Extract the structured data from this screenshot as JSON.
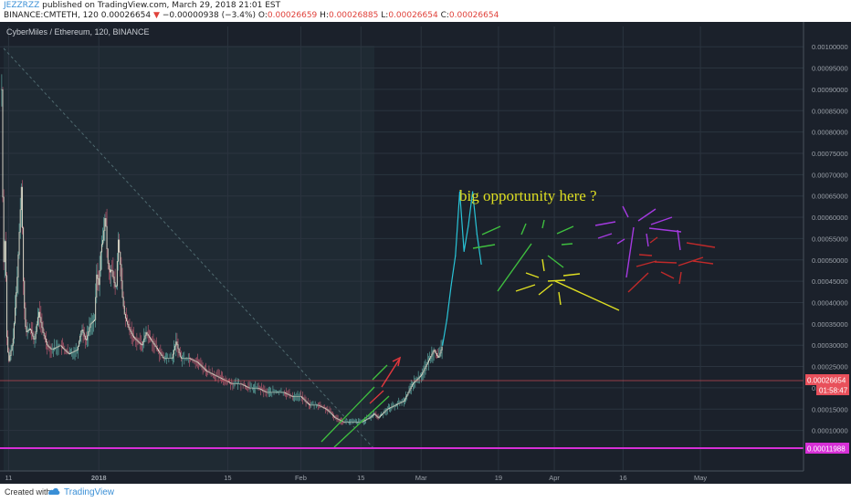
{
  "header": {
    "username": "JEZZRZZ",
    "published": " published on TradingView.com, March 29, 2018 21:01 EST",
    "symbol": "BINANCE:CMTETH, 120",
    "last": "0.00026654",
    "down_arrow": "▼",
    "change": "−0.00000938 (−3.4%)",
    "o_label": "O:",
    "o_val": "0.00026659",
    "h_label": "H:",
    "h_val": "0.00026885",
    "l_label": "L:",
    "l_val": "0.00026654",
    "c_label": "C:",
    "c_val": "0.00026654"
  },
  "footer": {
    "created_with": "Created with",
    "brand": "TradingView"
  },
  "colors": {
    "chart_bg": "#1b212b",
    "pane": "#1f2a33",
    "grid": "#2b343f",
    "candle": "#d6d4c4",
    "candle_up": "#5aa39c",
    "candle_down": "#b0566b",
    "cyan": "#29c4d7",
    "support": "#d62fd6",
    "green": "#3fbf3f",
    "red_arrow": "#e0373d",
    "annotation": "#dede22",
    "price_label": "#e8505b",
    "axis_text": "#9aa0a8"
  },
  "chart_data": {
    "type": "candlestick",
    "title": "CyberMiles / Ethereum, 120, BINANCE",
    "ylim": [
      5e-06,
      0.0010475
    ],
    "y_ticks": [
      "0.00100000",
      "0.00095000",
      "0.00090000",
      "0.00085000",
      "0.00080000",
      "0.00075000",
      "0.00070000",
      "0.00065000",
      "0.00060000",
      "0.00055000",
      "0.00050000",
      "0.00045000",
      "0.00040000",
      "0.00035000",
      "0.00030000",
      "0.00025000",
      "0.00020000",
      "0.00015000",
      "0.00010000"
    ],
    "y_tick_values": [
      0.001,
      0.00095,
      0.0009,
      0.00085,
      0.0008,
      0.00075,
      0.0007,
      0.00065,
      0.0006,
      0.00055,
      0.0005,
      0.00045,
      0.0004,
      0.00035,
      0.0003,
      0.00025,
      0.0002,
      0.00015,
      0.0001
    ],
    "x_ticks": [
      "11",
      "2018",
      "15",
      "Feb",
      "15",
      "Mar",
      "19",
      "Apr",
      "16",
      "May"
    ],
    "x_tick_days": [
      0,
      21,
      51,
      68,
      82,
      96,
      114,
      127,
      143,
      161
    ],
    "x_range_days": [
      -2,
      185
    ],
    "date_anchor_day0": "2017-12-11",
    "price_series": [
      [
        -1.6,
        0.0009
      ],
      [
        -1.2,
        0.00048
      ],
      [
        -0.8,
        0.00056
      ],
      [
        -0.4,
        0.00032
      ],
      [
        0,
        0.00026
      ],
      [
        1,
        0.00031
      ],
      [
        2,
        0.00046
      ],
      [
        3,
        0.00068
      ],
      [
        3.5,
        0.00042
      ],
      [
        4,
        0.00033
      ],
      [
        5,
        0.00034
      ],
      [
        6,
        0.00031
      ],
      [
        7,
        0.00038
      ],
      [
        8,
        0.00033
      ],
      [
        9,
        0.0003
      ],
      [
        10,
        0.00029
      ],
      [
        12,
        0.0003
      ],
      [
        14,
        0.00028
      ],
      [
        16,
        0.00029
      ],
      [
        17,
        0.00034
      ],
      [
        18,
        0.00031
      ],
      [
        19,
        0.00035
      ],
      [
        20,
        0.00036
      ],
      [
        20.5,
        0.00047
      ],
      [
        21,
        0.00044
      ],
      [
        21.5,
        0.00053
      ],
      [
        22,
        0.00055
      ],
      [
        22.5,
        0.00061
      ],
      [
        23,
        0.0005
      ],
      [
        23.5,
        0.00047
      ],
      [
        24,
        0.00048
      ],
      [
        24.5,
        0.00045
      ],
      [
        25,
        0.00043
      ],
      [
        25.5,
        0.00055
      ],
      [
        26,
        0.00049
      ],
      [
        26.5,
        0.00041
      ],
      [
        27,
        0.00037
      ],
      [
        28,
        0.00034
      ],
      [
        29,
        0.00032
      ],
      [
        30,
        0.00031
      ],
      [
        31,
        0.0003
      ],
      [
        32,
        0.00033
      ],
      [
        34,
        0.0003
      ],
      [
        36,
        0.00027
      ],
      [
        38,
        0.00027
      ],
      [
        39,
        0.00031
      ],
      [
        40,
        0.00027
      ],
      [
        42,
        0.00027
      ],
      [
        44,
        0.00026
      ],
      [
        46,
        0.00024
      ],
      [
        48,
        0.00023
      ],
      [
        50,
        0.00022
      ],
      [
        52,
        0.00021
      ],
      [
        54,
        0.00021
      ],
      [
        56,
        0.0002
      ],
      [
        58,
        0.0002
      ],
      [
        60,
        0.00019
      ],
      [
        62,
        0.00019
      ],
      [
        64,
        0.00019
      ],
      [
        66,
        0.00018
      ],
      [
        68,
        0.00018
      ],
      [
        70,
        0.00016
      ],
      [
        72,
        0.00016
      ],
      [
        74,
        0.00015
      ],
      [
        76,
        0.00013
      ],
      [
        78,
        0.00012
      ],
      [
        80,
        0.00012
      ],
      [
        82,
        0.00012
      ],
      [
        84,
        0.00013
      ],
      [
        85,
        0.00014
      ],
      [
        86,
        0.00013
      ],
      [
        88,
        0.00015
      ],
      [
        90,
        0.00016
      ],
      [
        92,
        0.00017
      ],
      [
        93,
        0.00019
      ],
      [
        94,
        0.00021
      ],
      [
        95,
        0.00022
      ],
      [
        96,
        0.00023
      ],
      [
        97,
        0.00025
      ],
      [
        98,
        0.00027
      ],
      [
        99,
        0.00029
      ],
      [
        100,
        0.00027
      ],
      [
        101,
        0.0003
      ]
    ],
    "series": [
      {
        "name": "projection",
        "values": [
          [
            101,
            0.0003
          ],
          [
            102,
            0.00036
          ],
          [
            103,
            0.00044
          ],
          [
            104,
            0.00051
          ],
          [
            105,
            0.00066
          ],
          [
            106,
            0.00052
          ],
          [
            107,
            0.00058
          ],
          [
            108,
            0.00066
          ],
          [
            109,
            0.00056
          ],
          [
            110,
            0.00049
          ]
        ]
      }
    ],
    "annotations": {
      "text": "big opportunity here ?",
      "support_level": 0.00011988,
      "support_label": "0.00011988",
      "last_price": 0.00026654,
      "last_label": "0.00026654",
      "countdown": "01:58:47"
    }
  }
}
